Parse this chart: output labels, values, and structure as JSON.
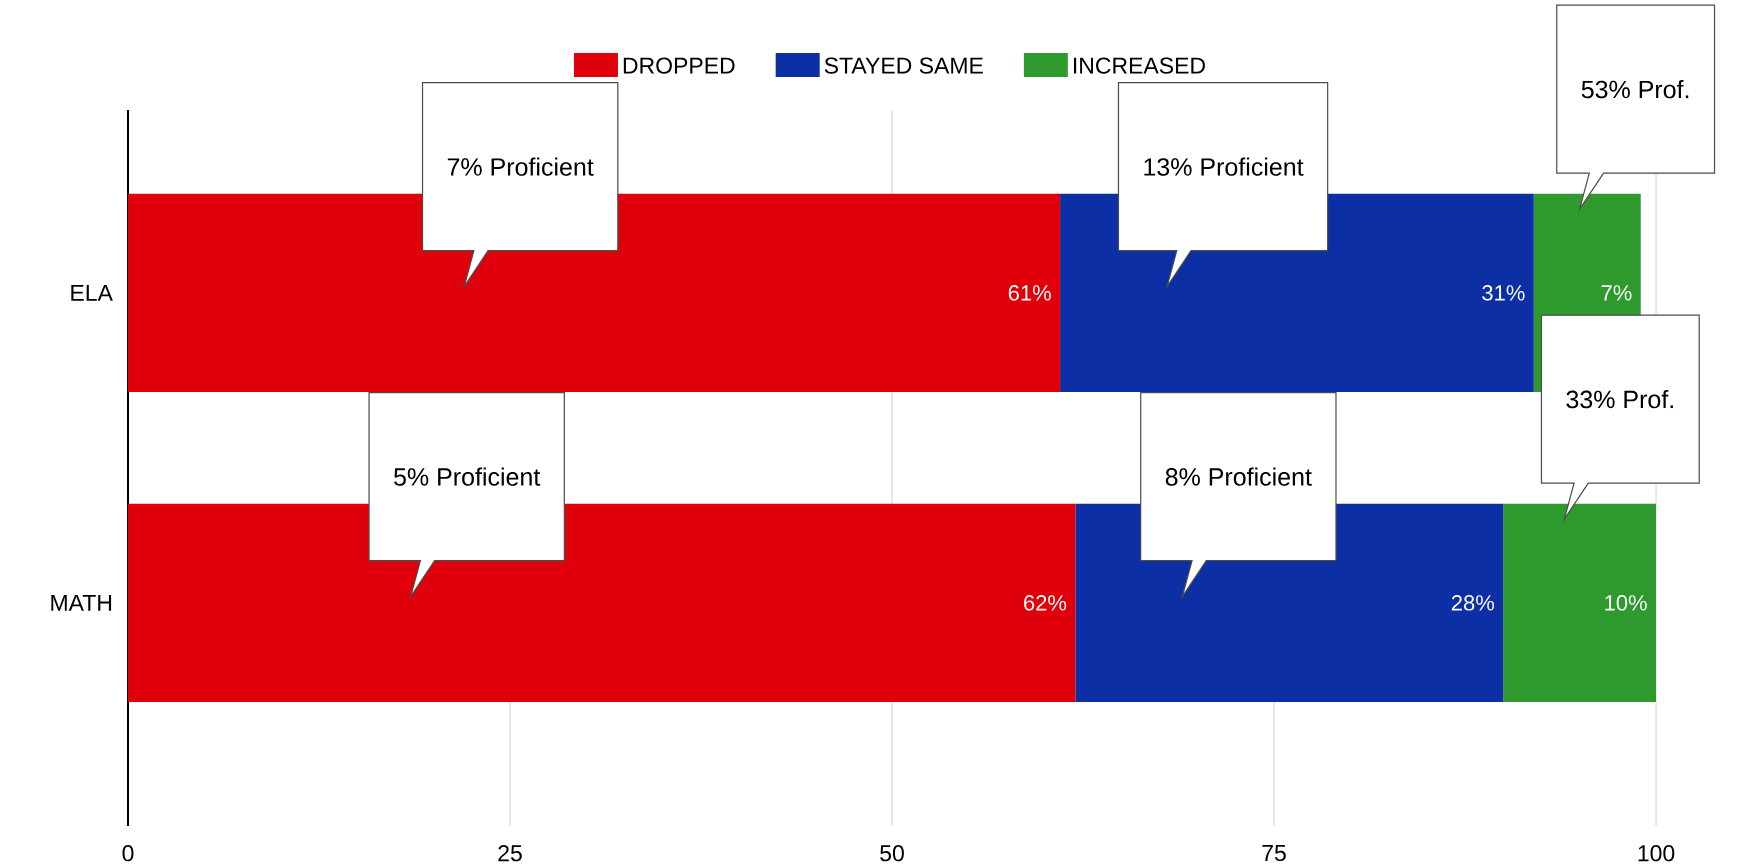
{
  "chart_data": {
    "type": "bar",
    "orientation": "horizontal",
    "stacked": true,
    "categories": [
      "ELA",
      "MATH"
    ],
    "series": [
      {
        "name": "DROPPED",
        "color": "#e0000b",
        "values": [
          61,
          62
        ],
        "value_labels": [
          "61%",
          "62%"
        ]
      },
      {
        "name": "STAYED SAME",
        "color": "#0d2fa5",
        "values": [
          31,
          28
        ],
        "value_labels": [
          "31%",
          "28%"
        ]
      },
      {
        "name": "INCREASED",
        "color": "#2e9a2e",
        "values": [
          7,
          10
        ],
        "value_labels": [
          "7%",
          "10%"
        ]
      }
    ],
    "xlim": [
      0,
      100
    ],
    "xticks": [
      0,
      25,
      50,
      75,
      100
    ],
    "grid": "x",
    "legend": "top",
    "annotations": [
      "7% Proficient",
      "13% Proficient",
      "53% Prof.",
      "5% Proficient",
      "8% Proficient",
      "33% Prof."
    ]
  }
}
